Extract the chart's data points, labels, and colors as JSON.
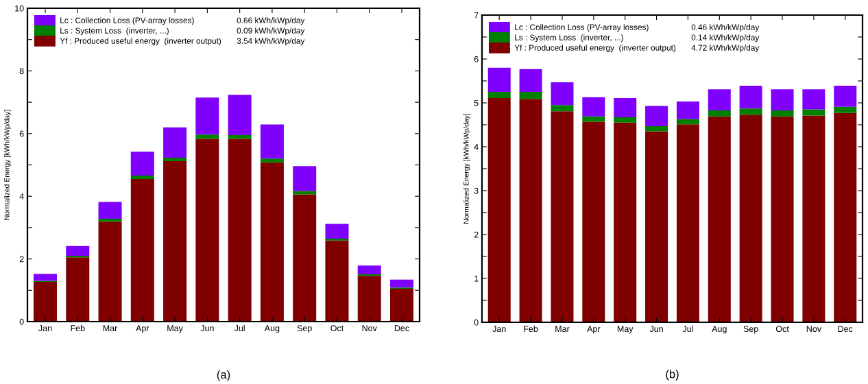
{
  "chart_data": [
    {
      "type": "bar",
      "title": "(a)",
      "ylabel": "Normalized Energy [kWh/kWp/day]",
      "stacked": true,
      "legend": "top left",
      "grid": false,
      "categories": [
        "Jan",
        "Feb",
        "Mar",
        "Apr",
        "May",
        "Jun",
        "Jul",
        "Aug",
        "Sep",
        "Oct",
        "Nov",
        "Dec"
      ],
      "ylim": [
        0,
        10
      ],
      "yticks": [
        0,
        {
          "value": 1,
          "label": null
        },
        2,
        {
          "value": 3,
          "label": null
        },
        4,
        {
          "value": 5,
          "label": null
        },
        6,
        {
          "value": 7,
          "label": null
        },
        8,
        {
          "value": 9,
          "label": null
        },
        10
      ],
      "series": [
        {
          "name": "Yf : Produced useful energy  (inverter output)",
          "color": "#800000",
          "values": [
            1.27,
            2.05,
            3.19,
            4.55,
            5.12,
            5.83,
            5.83,
            5.08,
            4.06,
            2.59,
            1.46,
            1.05
          ]
        },
        {
          "name": "Ls : System Loss  (inverter, ...)",
          "color": "#008000",
          "values": [
            0.03,
            0.05,
            0.09,
            0.11,
            0.11,
            0.14,
            0.12,
            0.12,
            0.11,
            0.06,
            0.05,
            0.04
          ]
        },
        {
          "name": "Lc : Collection Loss (PV-array losses)",
          "color": "#8000ff",
          "values": [
            0.22,
            0.31,
            0.54,
            0.76,
            0.97,
            1.18,
            1.29,
            1.09,
            0.79,
            0.47,
            0.28,
            0.25
          ]
        }
      ],
      "annotations": [
        "3.54 kWh/kWp/day",
        "0.09 kWh/kWp/day",
        "0.66 kWh/kWp/day"
      ]
    },
    {
      "type": "bar",
      "title": "(b)",
      "ylabel": "Normalized Energy [kWh/kWp/day]",
      "stacked": true,
      "legend": "top left",
      "grid": false,
      "categories": [
        "Jan",
        "Feb",
        "Mar",
        "Apr",
        "May",
        "Jun",
        "Jul",
        "Aug",
        "Sep",
        "Oct",
        "Nov",
        "Dec"
      ],
      "ylim": [
        0,
        7
      ],
      "yticks": [
        0,
        {
          "value": 0.5,
          "label": null
        },
        1,
        {
          "value": 1.5,
          "label": null
        },
        2,
        {
          "value": 2.5,
          "label": null
        },
        3,
        {
          "value": 3.5,
          "label": null
        },
        4,
        {
          "value": 4.5,
          "label": null
        },
        5,
        {
          "value": 5.5,
          "label": null
        },
        6,
        {
          "value": 6.5,
          "label": null
        },
        7
      ],
      "series": [
        {
          "name": "Yf : Produced useful energy  (inverter output)",
          "color": "#800000",
          "values": [
            5.11,
            5.09,
            4.81,
            4.57,
            4.55,
            4.35,
            4.51,
            4.69,
            4.73,
            4.69,
            4.71,
            4.77
          ]
        },
        {
          "name": "Ls : System Loss  (inverter, ...)",
          "color": "#008000",
          "values": [
            0.14,
            0.16,
            0.14,
            0.12,
            0.12,
            0.12,
            0.12,
            0.14,
            0.14,
            0.14,
            0.14,
            0.14
          ]
        },
        {
          "name": "Lc : Collection Loss (PV-array losses)",
          "color": "#8000ff",
          "values": [
            0.55,
            0.52,
            0.52,
            0.44,
            0.44,
            0.46,
            0.4,
            0.48,
            0.52,
            0.48,
            0.46,
            0.48
          ]
        }
      ],
      "annotations": [
        "4.72 kWh/kWp/day",
        "0.14 kWh/kWp/day",
        "0.46 kWh/kWp/day"
      ]
    }
  ]
}
